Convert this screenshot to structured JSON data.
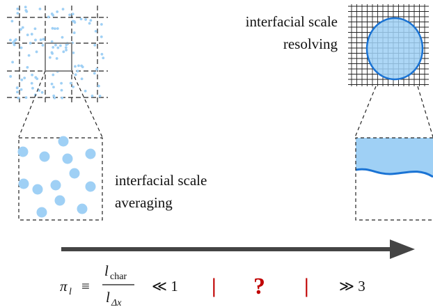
{
  "labels": {
    "resolving": [
      "interfacial scale",
      "resolving"
    ],
    "averaging": [
      "interfacial scale",
      "averaging"
    ]
  },
  "formula": {
    "symbol": "π",
    "subscript": "l",
    "equiv": "≡",
    "numerator": "l",
    "numerator_sub": "char",
    "denominator": "l",
    "denominator_sub": "Δx",
    "left_condition": "≪ 1",
    "separator_left": "|",
    "question": "?",
    "separator_right": "|",
    "right_condition": "≫ 3"
  }
}
